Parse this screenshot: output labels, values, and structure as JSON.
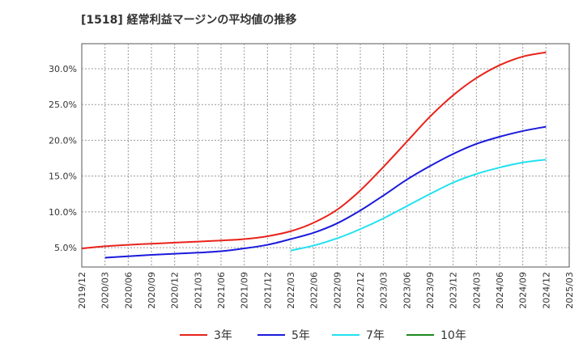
{
  "chart_data": {
    "type": "line",
    "title": "[1518]  経常利益マージンの平均値の推移",
    "xlabel": "",
    "ylabel": "",
    "ylim": [
      2.3,
      33.5
    ],
    "y_ticks": [
      "5.0%",
      "10.0%",
      "15.0%",
      "20.0%",
      "25.0%",
      "30.0%"
    ],
    "y_tick_values": [
      5,
      10,
      15,
      20,
      25,
      30
    ],
    "x_ticks": [
      "2019/12",
      "2020/03",
      "2020/06",
      "2020/09",
      "2020/12",
      "2021/03",
      "2021/06",
      "2021/09",
      "2021/12",
      "2022/03",
      "2022/06",
      "2022/09",
      "2022/12",
      "2023/03",
      "2023/06",
      "2023/09",
      "2023/12",
      "2024/03",
      "2024/06",
      "2024/09",
      "2024/12",
      "2025/03"
    ],
    "grid": true,
    "legend_position": "bottom",
    "series": [
      {
        "name": "3年",
        "color": "#e8231b",
        "values": [
          4.9,
          5.2,
          5.4,
          5.55,
          5.7,
          5.85,
          6.0,
          6.2,
          6.6,
          7.3,
          8.5,
          10.3,
          13.0,
          16.3,
          19.8,
          23.3,
          26.3,
          28.7,
          30.5,
          31.7,
          32.3
        ]
      },
      {
        "name": "5年",
        "color": "#1a1adc",
        "values": [
          null,
          3.6,
          3.8,
          4.0,
          4.15,
          4.3,
          4.5,
          4.9,
          5.4,
          6.2,
          7.1,
          8.4,
          10.2,
          12.3,
          14.5,
          16.4,
          18.1,
          19.5,
          20.5,
          21.3,
          21.9
        ]
      },
      {
        "name": "7年",
        "color": "#22e1f0",
        "values": [
          null,
          null,
          null,
          null,
          null,
          null,
          null,
          null,
          null,
          4.6,
          5.3,
          6.3,
          7.6,
          9.1,
          10.8,
          12.5,
          14.1,
          15.3,
          16.2,
          16.9,
          17.3
        ]
      },
      {
        "name": "10年",
        "color": "#1e8a1e",
        "values": []
      }
    ]
  }
}
